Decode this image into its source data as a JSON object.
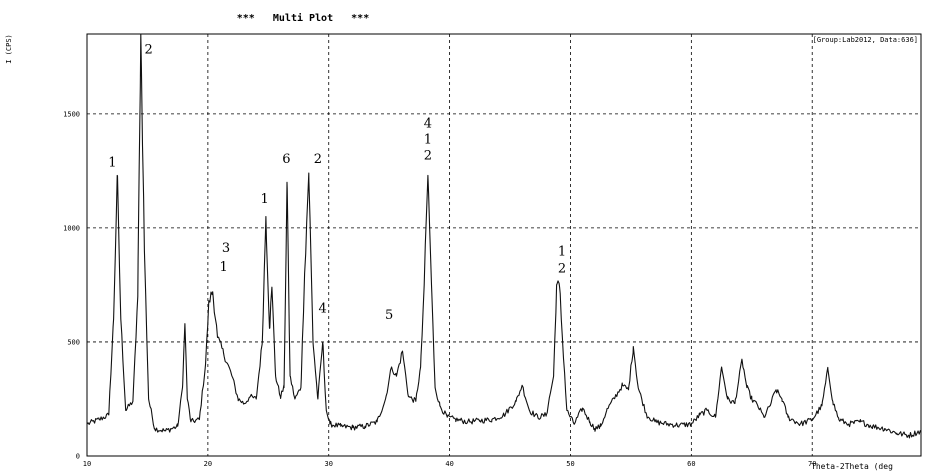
{
  "chart_data": {
    "type": "line",
    "title": "***   Multi Plot   ***",
    "info_label": "[Group:Lab2012, Data:636]",
    "ylabel": "I (CPS)",
    "xlabel": "Theta-2Theta (deg",
    "xlim": [
      10,
      79
    ],
    "ylim": [
      0,
      1850
    ],
    "x_ticks": [
      10,
      20,
      30,
      40,
      50,
      60,
      70
    ],
    "x_tick_labels": [
      "10",
      "20",
      "30",
      "40",
      "50",
      "60",
      "70"
    ],
    "y_ticks": [
      0,
      500,
      1000,
      1500
    ],
    "y_tick_labels": [
      "0",
      "500",
      "1000",
      "1500"
    ],
    "grid": true,
    "series": [
      {
        "x": [
          10,
          11,
          11.8,
          12.2,
          12.5,
          12.8,
          13.2,
          13.8,
          14.2,
          14.45,
          14.75,
          15.1,
          15.6,
          16.5,
          17.5,
          17.9,
          18.1,
          18.3,
          18.6,
          19.3,
          19.8,
          20.1,
          20.4,
          20.8,
          21.3,
          22.0,
          22.5,
          23.0,
          23.5,
          24.0,
          24.5,
          24.8,
          25.1,
          25.3,
          25.6,
          26.0,
          26.3,
          26.55,
          26.8,
          27.2,
          27.7,
          28.0,
          28.35,
          28.7,
          29.1,
          29.5,
          29.8,
          30.1,
          31.0,
          32.0,
          33.0,
          34.0,
          34.7,
          35.2,
          35.6,
          36.1,
          36.6,
          37.2,
          37.6,
          37.9,
          38.2,
          38.5,
          38.8,
          39.2,
          39.8,
          40.5,
          41.5,
          42.5,
          43.5,
          44.5,
          45.5,
          46.0,
          46.6,
          47.3,
          48.0,
          48.6,
          48.85,
          49.1,
          49.35,
          49.7,
          50.3,
          51.0,
          51.6,
          52.0,
          52.5,
          53.0,
          53.7,
          54.3,
          54.8,
          55.2,
          55.6,
          56.3,
          57.0,
          58.0,
          59.0,
          60.0,
          60.7,
          61.3,
          62.0,
          62.5,
          63.0,
          63.6,
          64.2,
          64.6,
          65.0,
          65.5,
          66.0,
          66.5,
          67.0,
          67.5,
          68.0,
          69.0,
          70.0,
          70.8,
          71.3,
          71.7,
          72.2,
          73.0,
          74.0,
          75.0,
          76.0,
          77.0,
          78.0,
          79.0
        ],
        "y": [
          140,
          160,
          180,
          600,
          1230,
          600,
          200,
          240,
          700,
          1850,
          900,
          250,
          120,
          110,
          130,
          300,
          580,
          250,
          150,
          160,
          400,
          680,
          720,
          520,
          450,
          350,
          250,
          230,
          260,
          250,
          500,
          1050,
          560,
          740,
          350,
          260,
          300,
          1200,
          350,
          250,
          300,
          800,
          1240,
          500,
          250,
          500,
          200,
          140,
          130,
          125,
          130,
          150,
          250,
          390,
          350,
          460,
          260,
          240,
          390,
          750,
          1230,
          750,
          300,
          220,
          170,
          160,
          150,
          155,
          160,
          180,
          240,
          310,
          200,
          170,
          180,
          350,
          750,
          740,
          500,
          200,
          140,
          210,
          150,
          120,
          130,
          200,
          260,
          310,
          290,
          480,
          300,
          180,
          150,
          140,
          135,
          140,
          180,
          200,
          170,
          390,
          250,
          230,
          420,
          300,
          250,
          220,
          170,
          220,
          290,
          250,
          170,
          140,
          160,
          220,
          380,
          240,
          160,
          140,
          150,
          130,
          120,
          100,
          90,
          110
        ]
      }
    ],
    "peak_labels": [
      {
        "x": 12.1,
        "y": 1270,
        "text": "1"
      },
      {
        "x": 15.1,
        "y": 1765,
        "text": "2"
      },
      {
        "x": 21.5,
        "y": 895,
        "text": "3"
      },
      {
        "x": 21.3,
        "y": 810,
        "text": "1"
      },
      {
        "x": 24.7,
        "y": 1110,
        "text": "1"
      },
      {
        "x": 26.5,
        "y": 1285,
        "text": "6"
      },
      {
        "x": 29.1,
        "y": 1285,
        "text": "2"
      },
      {
        "x": 29.5,
        "y": 630,
        "text": "4"
      },
      {
        "x": 35.0,
        "y": 600,
        "text": "5"
      },
      {
        "x": 38.2,
        "y": 1440,
        "text": "4"
      },
      {
        "x": 38.2,
        "y": 1370,
        "text": "1"
      },
      {
        "x": 38.2,
        "y": 1300,
        "text": "2"
      },
      {
        "x": 49.3,
        "y": 880,
        "text": "1"
      },
      {
        "x": 49.3,
        "y": 805,
        "text": "2"
      }
    ]
  }
}
